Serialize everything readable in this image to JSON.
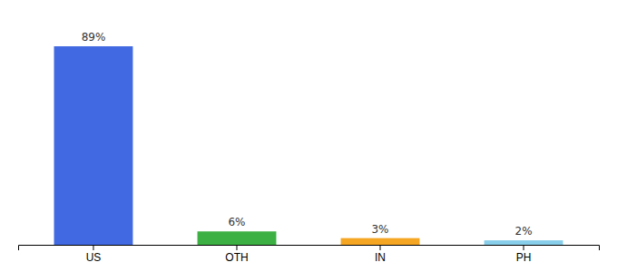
{
  "chart_data": {
    "type": "bar",
    "categories": [
      "US",
      "OTH",
      "IN",
      "PH"
    ],
    "values": [
      89,
      6,
      3,
      2
    ],
    "value_labels": [
      "89%",
      "6%",
      "3%",
      "2%"
    ],
    "colors": [
      "#4169e1",
      "#3cb043",
      "#f5a623",
      "#87ceeb"
    ],
    "ylim": [
      0,
      100
    ],
    "data_labels": true,
    "grid": false,
    "tick_labels": "x"
  }
}
